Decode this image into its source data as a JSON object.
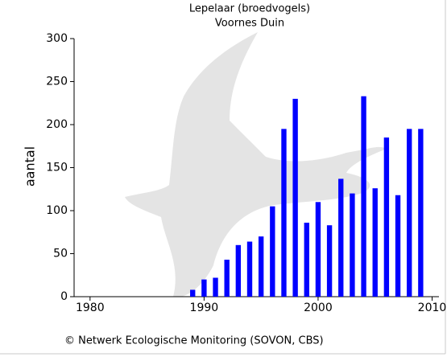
{
  "chart_data": {
    "type": "bar",
    "title": "Lepelaar (broedvogels)",
    "subtitle": "Voornes Duin",
    "y_label": "aantal",
    "footer": "© Netwerk Ecologische Monitoring (SOVON, CBS)",
    "x": [
      1989,
      1990,
      1991,
      1992,
      1993,
      1994,
      1995,
      1996,
      1997,
      1998,
      1999,
      2000,
      2001,
      2002,
      2003,
      2004,
      2005,
      2006,
      2007,
      2008,
      2009
    ],
    "values": [
      8,
      20,
      22,
      43,
      60,
      64,
      70,
      105,
      195,
      230,
      86,
      110,
      83,
      137,
      120,
      233,
      126,
      185,
      118,
      195,
      195
    ],
    "color": "#0000ff",
    "xlim": [
      1978.6,
      2010.6
    ],
    "xticks": [
      1980,
      1990,
      2000,
      2010
    ],
    "ylim": [
      0,
      300
    ],
    "yticks": [
      0,
      50,
      100,
      150,
      200,
      250,
      300
    ]
  }
}
